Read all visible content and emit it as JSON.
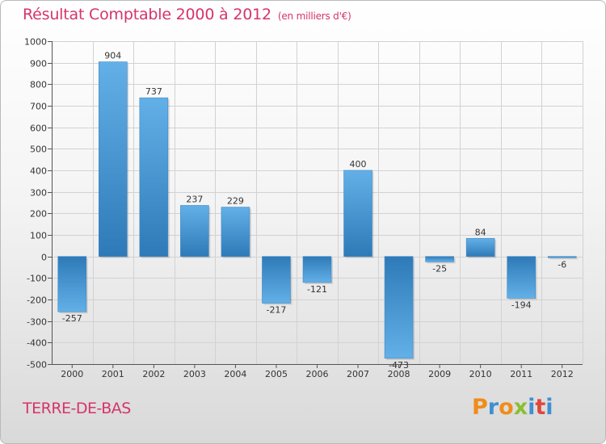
{
  "header": {
    "title": "Résultat Comptable 2000 à 2012",
    "subtitle": "(en milliers d'€)"
  },
  "footer": {
    "commune": "TERRE-DE-BAS",
    "logo_text": "Proxiti"
  },
  "colors": {
    "title": "#d6336c",
    "bar_dark": "#2e7ab8",
    "bar_light": "#63b0e8",
    "logo_letters": [
      "#f08c1a",
      "#3f8fd1",
      "#f08c1a",
      "#8bbf2f",
      "#3f8fd1",
      "#e0463b",
      "#3f8fd1"
    ]
  },
  "chart_data": {
    "type": "bar",
    "title": "Résultat Comptable 2000 à 2012",
    "xlabel": "",
    "ylabel": "(en milliers d'€)",
    "ylim": [
      -500,
      1000
    ],
    "ytick_step": 100,
    "grid": true,
    "categories": [
      "2000",
      "2001",
      "2002",
      "2003",
      "2004",
      "2005",
      "2006",
      "2007",
      "2008",
      "2009",
      "2010",
      "2011",
      "2012"
    ],
    "values": [
      -257,
      904,
      737,
      237,
      229,
      -217,
      -121,
      400,
      -473,
      -25,
      84,
      -194,
      -6
    ]
  }
}
